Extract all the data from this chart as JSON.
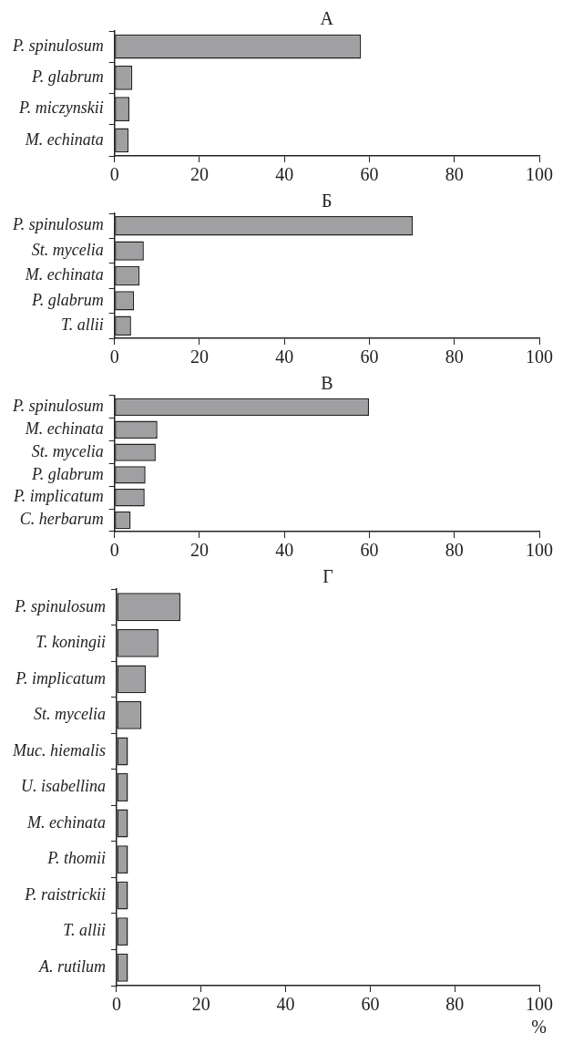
{
  "chart_data": [
    {
      "type": "bar",
      "orientation": "horizontal",
      "title": "А",
      "categories": [
        "P. spinulosum",
        "P. glabrum",
        "P. miczynskii",
        "M. echinata"
      ],
      "values": [
        58,
        4.2,
        3.5,
        3.3
      ],
      "color": "#a0a0a2",
      "xlim": [
        0,
        100
      ],
      "xticks": [
        0,
        20,
        40,
        60,
        80,
        100
      ],
      "grid": false,
      "legend": false
    },
    {
      "type": "bar",
      "orientation": "horizontal",
      "title": "Б",
      "categories": [
        "P. spinulosum",
        "St. mycelia",
        "M. echinata",
        "P. glabrum",
        "T. allii"
      ],
      "values": [
        70.2,
        6.9,
        5.9,
        4.6,
        3.9
      ],
      "color": "#a0a0a2",
      "xlim": [
        0,
        100
      ],
      "xticks": [
        0,
        20,
        40,
        60,
        80,
        100
      ],
      "grid": false,
      "legend": false
    },
    {
      "type": "bar",
      "orientation": "horizontal",
      "title": "В",
      "categories": [
        "P. spinulosum",
        "M. echinata",
        "St. mycelia",
        "P. glabrum",
        "P. implicatum",
        "C. herbarum"
      ],
      "values": [
        59.9,
        10.1,
        9.7,
        7.3,
        7.1,
        3.8
      ],
      "color": "#a0a0a2",
      "xlim": [
        0,
        100
      ],
      "xticks": [
        0,
        20,
        40,
        60,
        80,
        100
      ],
      "grid": false,
      "legend": false
    },
    {
      "type": "bar",
      "orientation": "horizontal",
      "title": "Г",
      "xlabel": "%",
      "categories": [
        "P. spinulosum",
        "T. koningii",
        "P. implicatum",
        "St. mycelia",
        "Muc. hiemalis",
        "U. isabellina",
        "M. echinata",
        "P. thomii",
        "P. raistrickii",
        "T. allii",
        "A. rutilum"
      ],
      "values": [
        15.1,
        9.9,
        6.9,
        5.9,
        2.7,
        2.7,
        2.7,
        2.7,
        2.7,
        2.7,
        2.7
      ],
      "color": "#a0a0a2",
      "xlim": [
        0,
        100
      ],
      "xticks": [
        0,
        20,
        40,
        60,
        80,
        100
      ],
      "grid": false,
      "legend": false
    }
  ]
}
